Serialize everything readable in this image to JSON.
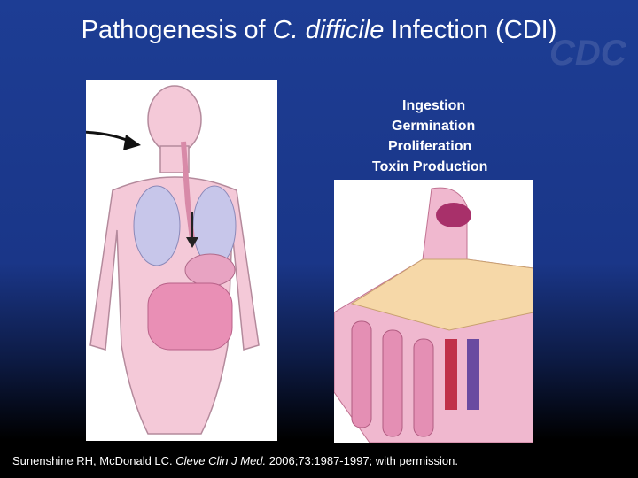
{
  "logo": "CDC",
  "title": [
    "Pathogenesis of",
    "C. difficile",
    "Infection (CDI)"
  ],
  "steps": [
    "Ingestion",
    "Germination",
    "Proliferation",
    "Toxin Production"
  ],
  "citation": [
    "Sunenshine RH, McDonald LC.",
    "Cleve Clin J Med.",
    "2006;73:1987-1997; with permission."
  ]
}
